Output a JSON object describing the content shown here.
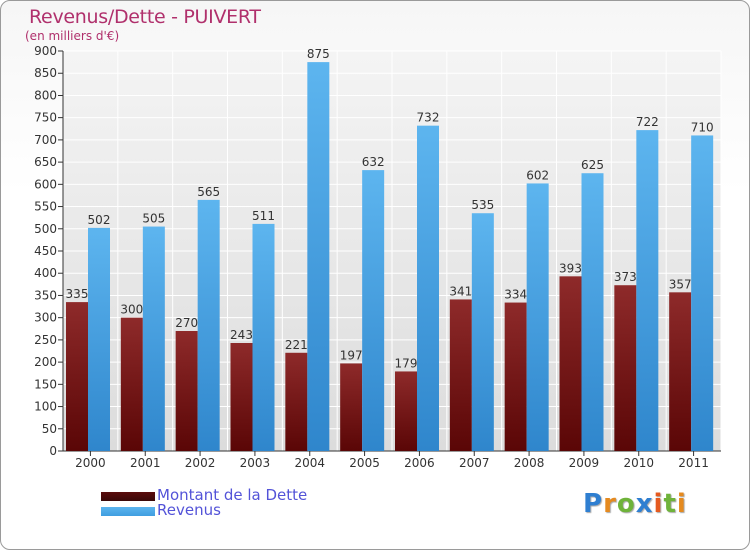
{
  "header": {
    "title": "Revenus/Dette - PUIVERT",
    "subtitle": "(en milliers d'€)"
  },
  "chart_data": {
    "type": "bar",
    "title": "Revenus/Dette - PUIVERT",
    "ylabel": "(en milliers d'€)",
    "xlabel": "",
    "ylim": [
      0,
      900
    ],
    "ytick_step": 50,
    "categories": [
      "2000",
      "2001",
      "2002",
      "2003",
      "2004",
      "2005",
      "2006",
      "2007",
      "2008",
      "2009",
      "2010",
      "2011"
    ],
    "series": [
      {
        "name": "Montant de la Dette",
        "color": "#7a1e1e",
        "values": [
          335,
          300,
          270,
          243,
          221,
          197,
          179,
          341,
          334,
          393,
          373,
          357
        ]
      },
      {
        "name": "Revenus",
        "color": "#3f9ee0",
        "values": [
          502,
          505,
          565,
          511,
          875,
          632,
          732,
          535,
          602,
          625,
          722,
          710
        ]
      }
    ],
    "legend_position": "bottom-left",
    "grid": true
  },
  "legend": {
    "items": [
      {
        "label": "Montant de la Dette",
        "color": "#5a0c0c"
      },
      {
        "label": "Revenus",
        "color": "#3f9ee0"
      }
    ]
  },
  "logo": {
    "letters": [
      "P",
      "r",
      "o",
      "x",
      "i",
      "t",
      "i"
    ],
    "colors": [
      "#2f7fd1",
      "#e58a1f",
      "#6fb33a",
      "#2f7fd1",
      "#e55a1f",
      "#6fb33a",
      "#e58a1f"
    ]
  }
}
